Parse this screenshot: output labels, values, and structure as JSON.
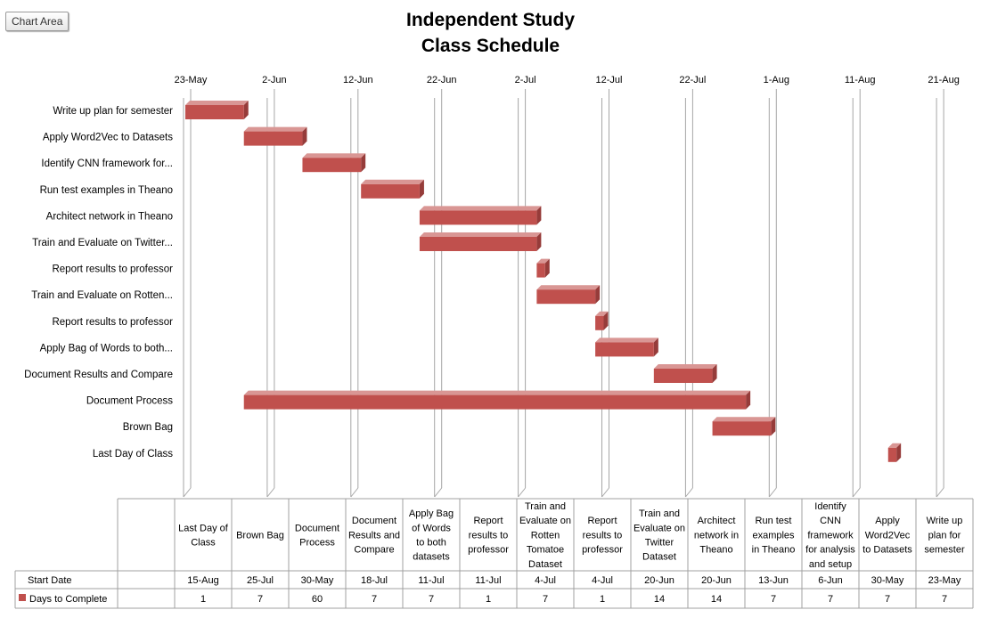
{
  "chart_area_label": "Chart Area",
  "colors": {
    "bar": "#c0504d",
    "bar_top": "#d99694",
    "bar_side": "#963c3a",
    "grid": "#a6a6a6"
  },
  "chart_data": {
    "type": "bar",
    "orientation": "horizontal-gantt",
    "title": [
      "Independent Study",
      "Class Schedule"
    ],
    "date_ticks": [
      "23-May",
      "2-Jun",
      "12-Jun",
      "22-Jun",
      "2-Jul",
      "12-Jul",
      "22-Jul",
      "1-Aug",
      "11-Aug",
      "21-Aug"
    ],
    "categories": [
      "Write up plan for semester",
      "Apply Word2Vec to Datasets",
      "Identify CNN framework for...",
      "Run test examples in Theano",
      "Architect network in Theano",
      "Train and Evaluate on Twitter...",
      "Report results to professor",
      "Train and Evaluate on Rotten...",
      "Report results to professor",
      "Apply Bag of Words to both...",
      "Document Results and Compare",
      "Document Process",
      "Brown Bag",
      "Last Day of Class"
    ],
    "series": [
      {
        "name": "Start Date",
        "values": [
          "23-May",
          "30-May",
          "6-Jun",
          "13-Jun",
          "20-Jun",
          "20-Jun",
          "4-Jul",
          "4-Jul",
          "11-Jul",
          "11-Jul",
          "18-Jul",
          "30-May",
          "25-Jul",
          "15-Aug"
        ]
      },
      {
        "name": "Days to Complete",
        "values": [
          7,
          7,
          7,
          7,
          14,
          14,
          1,
          7,
          1,
          7,
          7,
          60,
          7,
          1
        ]
      }
    ],
    "table": {
      "columns": [
        "Last Day of Class",
        "Brown Bag",
        "Document Process",
        "Document Results and Compare",
        "Apply Bag of Words to both datasets",
        "Report results to professor",
        "Train and Evaluate on Rotten Tomatoe Dataset",
        "Report results to professor",
        "Train and Evaluate on Twitter Dataset",
        "Architect network in Theano",
        "Run test examples in Theano",
        "Identify CNN framework for analysis and setup",
        "Apply Word2Vec to Datasets",
        "Write up plan for semester"
      ],
      "column_lines": [
        [
          "Last Day of",
          "Class"
        ],
        [
          "Brown Bag"
        ],
        [
          "Document",
          "Process"
        ],
        [
          "Document",
          "Results and",
          "Compare"
        ],
        [
          "Apply Bag",
          "of Words",
          "to both",
          "datasets"
        ],
        [
          "Report",
          "results to",
          "professor"
        ],
        [
          "Train and",
          "Evaluate on",
          "Rotten",
          "Tomatoe",
          "Dataset"
        ],
        [
          "Report",
          "results to",
          "professor"
        ],
        [
          "Train and",
          "Evaluate on",
          "Twitter",
          "Dataset"
        ],
        [
          "Architect",
          "network in",
          "Theano"
        ],
        [
          "Run test",
          "examples",
          "in Theano"
        ],
        [
          "Identify",
          "CNN",
          "framework",
          "for analysis",
          "and setup"
        ],
        [
          "Apply",
          "Word2Vec",
          "to Datasets"
        ],
        [
          "Write up",
          "plan for",
          "semester"
        ]
      ],
      "rows": [
        {
          "label": "Start Date",
          "values": [
            "15-Aug",
            "25-Jul",
            "30-May",
            "18-Jul",
            "11-Jul",
            "11-Jul",
            "4-Jul",
            "4-Jul",
            "20-Jun",
            "20-Jun",
            "13-Jun",
            "6-Jun",
            "30-May",
            "23-May"
          ]
        },
        {
          "label": "Days to Complete",
          "values": [
            "1",
            "7",
            "60",
            "7",
            "7",
            "1",
            "7",
            "1",
            "14",
            "14",
            "7",
            "7",
            "7",
            "7"
          ]
        }
      ]
    }
  }
}
